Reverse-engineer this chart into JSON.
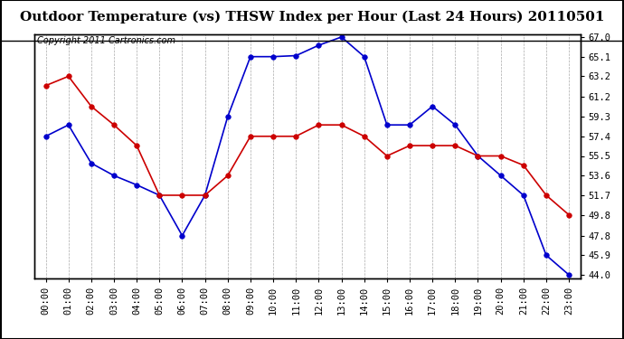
{
  "title": "Outdoor Temperature (vs) THSW Index per Hour (Last 24 Hours) 20110501",
  "copyright": "Copyright 2011 Cartronics.com",
  "hours": [
    "00:00",
    "01:00",
    "02:00",
    "03:00",
    "04:00",
    "05:00",
    "06:00",
    "07:00",
    "08:00",
    "09:00",
    "10:00",
    "11:00",
    "12:00",
    "13:00",
    "14:00",
    "15:00",
    "16:00",
    "17:00",
    "18:00",
    "19:00",
    "20:00",
    "21:00",
    "22:00",
    "23:00"
  ],
  "blue_data": [
    57.4,
    58.5,
    54.8,
    53.6,
    52.7,
    51.7,
    47.8,
    51.7,
    59.3,
    65.1,
    65.1,
    65.2,
    66.2,
    67.0,
    65.1,
    58.5,
    58.5,
    60.3,
    58.5,
    55.5,
    53.6,
    51.7,
    45.9,
    44.0
  ],
  "red_data": [
    62.3,
    63.2,
    60.3,
    58.5,
    56.5,
    51.7,
    51.7,
    51.7,
    53.6,
    57.4,
    57.4,
    57.4,
    58.5,
    58.5,
    57.4,
    55.5,
    56.5,
    56.5,
    56.5,
    55.5,
    55.5,
    54.6,
    51.7,
    49.8
  ],
  "blue_color": "#0000cc",
  "red_color": "#cc0000",
  "bg_color": "#ffffff",
  "grid_color": "#aaaaaa",
  "ylim_min": 44.0,
  "ylim_max": 67.0,
  "yticks": [
    44.0,
    45.9,
    47.8,
    49.8,
    51.7,
    53.6,
    55.5,
    57.4,
    59.3,
    61.2,
    63.2,
    65.1,
    67.0
  ],
  "title_fontsize": 11,
  "copyright_fontsize": 7,
  "tick_fontsize": 7.5,
  "markersize": 4,
  "linewidth": 1.2
}
